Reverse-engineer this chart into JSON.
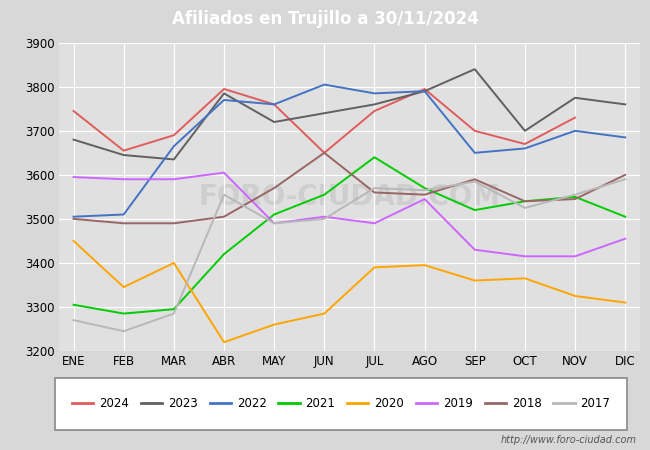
{
  "title": "Afiliados en Trujillo a 30/11/2024",
  "title_bg_color": "#4e7abf",
  "title_text_color": "white",
  "ylim": [
    3200,
    3900
  ],
  "yticks": [
    3200,
    3300,
    3400,
    3500,
    3600,
    3700,
    3800,
    3900
  ],
  "months": [
    "ENE",
    "FEB",
    "MAR",
    "ABR",
    "MAY",
    "JUN",
    "JUL",
    "AGO",
    "SEP",
    "OCT",
    "NOV",
    "DIC"
  ],
  "watermark": "FORO-CIUDAD.COM",
  "url": "http://www.foro-ciudad.com",
  "series": {
    "2024": {
      "color": "#e05c5c",
      "data": [
        3745,
        3655,
        3690,
        3795,
        3760,
        3650,
        3745,
        3795,
        3700,
        3670,
        3730,
        null
      ]
    },
    "2023": {
      "color": "#606060",
      "data": [
        3680,
        3645,
        3635,
        3785,
        3720,
        3740,
        3760,
        3790,
        3840,
        3700,
        3775,
        3760
      ]
    },
    "2022": {
      "color": "#4472c4",
      "data": [
        3505,
        3510,
        3665,
        3770,
        3760,
        3805,
        3785,
        3790,
        3650,
        3660,
        3700,
        3685
      ]
    },
    "2021": {
      "color": "#00cc00",
      "data": [
        3305,
        3285,
        3295,
        3420,
        3510,
        3555,
        3640,
        3570,
        3520,
        3540,
        3550,
        3505
      ]
    },
    "2020": {
      "color": "#ffa500",
      "data": [
        3450,
        3345,
        3400,
        3220,
        3260,
        3285,
        3390,
        3395,
        3360,
        3365,
        3325,
        3310
      ]
    },
    "2019": {
      "color": "#cc66ff",
      "data": [
        3595,
        3590,
        3590,
        3605,
        3490,
        3505,
        3490,
        3545,
        3430,
        3415,
        3415,
        3455
      ]
    },
    "2018": {
      "color": "#996666",
      "data": [
        3500,
        3490,
        3490,
        3505,
        3570,
        3650,
        3560,
        3555,
        3590,
        3540,
        3545,
        3600
      ]
    },
    "2017": {
      "color": "#b8b8b8",
      "data": [
        3270,
        3245,
        3285,
        3555,
        3490,
        3500,
        3570,
        3565,
        3585,
        3525,
        3555,
        3590
      ]
    }
  },
  "legend_order": [
    "2024",
    "2023",
    "2022",
    "2021",
    "2020",
    "2019",
    "2018",
    "2017"
  ],
  "bg_color": "#d8d8d8",
  "plot_bg_color": "#e0e0e0",
  "grid_color": "white"
}
